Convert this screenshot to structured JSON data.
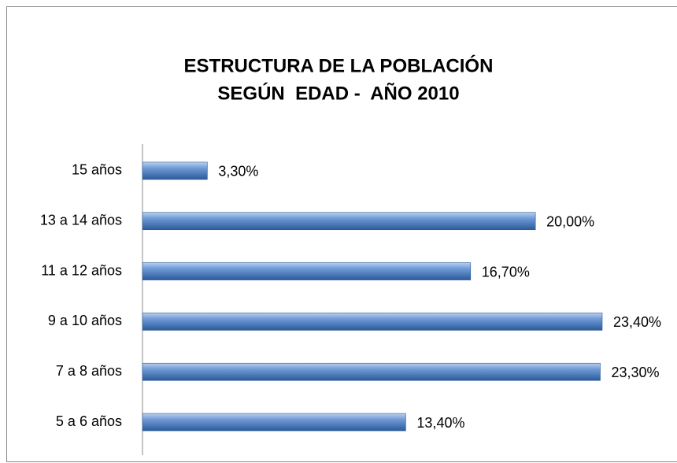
{
  "chart_data": {
    "type": "bar",
    "orientation": "horizontal",
    "title": [
      "ESTRUCTURA DE LA POBLACIÓN",
      "SEGÚN  EDAD -  AÑO 2010"
    ],
    "categories": [
      "15 años",
      "13 a 14 años",
      "11 a 12 años",
      "9 a 10 años",
      "7 a 8 años",
      "5 a 6 años"
    ],
    "values": [
      3.3,
      20.0,
      16.7,
      23.4,
      23.3,
      13.4
    ],
    "value_labels": [
      "3,30%",
      "20,00%",
      "16,70%",
      "23,40%",
      "23,30%",
      "13,40%"
    ],
    "color": "#4f81bd"
  }
}
